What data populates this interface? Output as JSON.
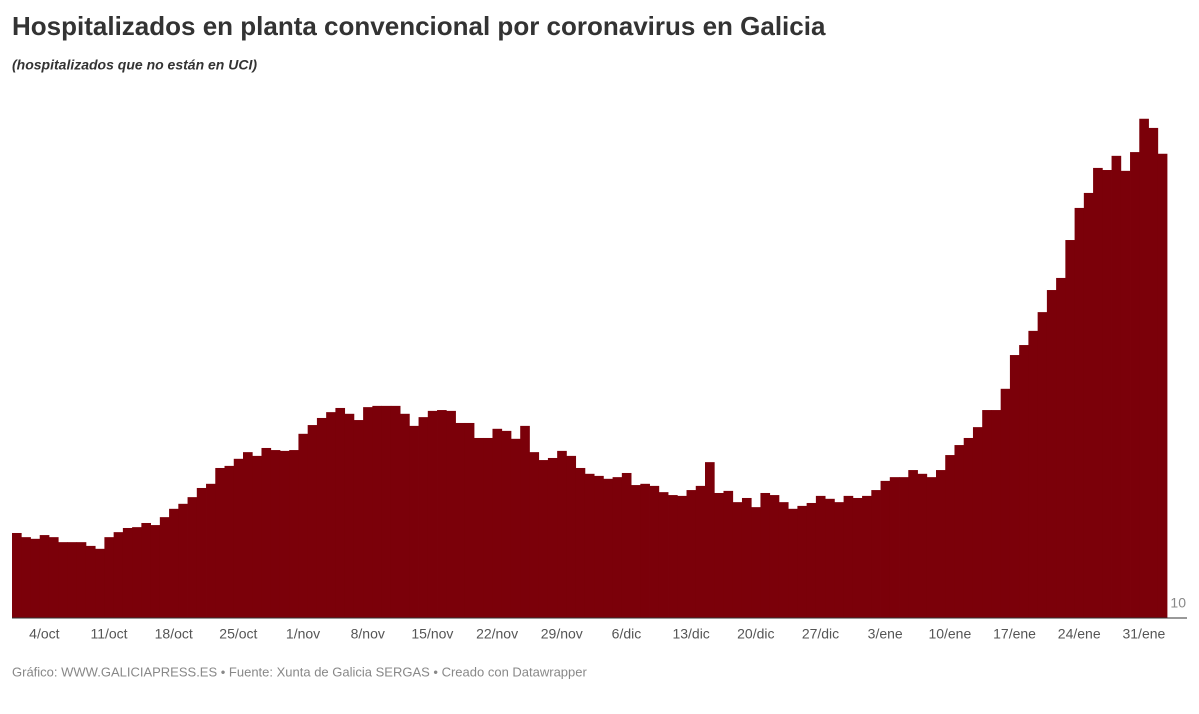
{
  "chart_data": {
    "type": "bar",
    "title": "Hospitalizados en planta convencional por coronavirus en Galicia",
    "subtitle": "(hospitalizados que no están en UCI)",
    "footer": "Gráfico: WWW.GALICIAPRESS.ES • Fuente: Xunta de Galicia SERGAS • Creado con Datawrapper",
    "color": "#7b0009",
    "ylim": [
      10,
      1253
    ],
    "yticks": [
      10
    ],
    "categories": [
      null,
      null,
      null,
      "4/oct",
      null,
      null,
      null,
      null,
      null,
      null,
      "11/oct",
      null,
      null,
      null,
      null,
      null,
      null,
      "18/oct",
      null,
      null,
      null,
      null,
      null,
      null,
      "25/oct",
      null,
      null,
      null,
      null,
      null,
      null,
      "1/nov",
      null,
      null,
      null,
      null,
      null,
      null,
      "8/nov",
      null,
      null,
      null,
      null,
      null,
      null,
      "15/nov",
      null,
      null,
      null,
      null,
      null,
      null,
      "22/nov",
      null,
      null,
      null,
      null,
      null,
      null,
      "29/nov",
      null,
      null,
      null,
      null,
      null,
      null,
      "6/dic",
      null,
      null,
      null,
      null,
      null,
      null,
      "13/dic",
      null,
      null,
      null,
      null,
      null,
      null,
      "20/dic",
      null,
      null,
      null,
      null,
      null,
      null,
      "27/dic",
      null,
      null,
      null,
      null,
      null,
      null,
      "3/ene",
      null,
      null,
      null,
      null,
      null,
      null,
      "10/ene",
      null,
      null,
      null,
      null,
      null,
      null,
      "17/ene",
      null,
      null,
      null,
      null,
      null,
      null,
      "24/ene",
      null,
      null,
      null,
      null,
      null,
      null,
      "31/ene",
      null,
      null
    ],
    "values": [
      214,
      204,
      200,
      209,
      204,
      192,
      192,
      192,
      183,
      176,
      204,
      216,
      226,
      228,
      238,
      233,
      252,
      272,
      284,
      300,
      322,
      332,
      370,
      375,
      392,
      408,
      399,
      418,
      413,
      411,
      413,
      452,
      473,
      490,
      504,
      514,
      500,
      485,
      516,
      519,
      519,
      519,
      500,
      471,
      492,
      507,
      509,
      507,
      478,
      478,
      442,
      442,
      464,
      459,
      440,
      471,
      408,
      389,
      394,
      411,
      399,
      370,
      356,
      351,
      344,
      348,
      358,
      329,
      332,
      327,
      312,
      305,
      303,
      317,
      327,
      384,
      310,
      315,
      288,
      298,
      276,
      310,
      305,
      288,
      272,
      279,
      286,
      303,
      296,
      288,
      303,
      298,
      303,
      317,
      339,
      348,
      348,
      365,
      356,
      348,
      365,
      401,
      425,
      442,
      468,
      509,
      509,
      560,
      641,
      665,
      699,
      744,
      797,
      826,
      917,
      994,
      1030,
      1090,
      1085,
      1119,
      1083,
      1128,
      1208,
      1186,
      1124
    ]
  }
}
